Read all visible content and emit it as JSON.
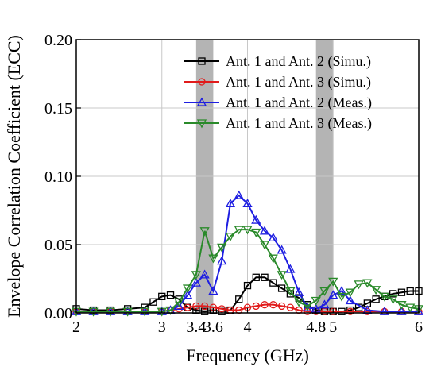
{
  "chart_data": {
    "type": "line",
    "xlabel": "Frequency (GHz)",
    "ylabel": "Envelope Correlation Coefficient (ECC)",
    "xlim": [
      2,
      6
    ],
    "ylim": [
      0,
      0.2
    ],
    "grid": true,
    "legend_position": "top-right",
    "x_ticks": [
      2,
      3,
      3.4,
      3.6,
      4,
      4.8,
      5,
      6
    ],
    "x_tick_labels": [
      "2",
      "3",
      "3.4",
      "3.6",
      "4",
      "4.8",
      "5",
      "6"
    ],
    "y_ticks": [
      0,
      0.05,
      0.1,
      0.15,
      0.2
    ],
    "y_tick_labels": [
      "0.00",
      "0.05",
      "0.10",
      "0.15",
      "0.20"
    ],
    "shaded_bands": [
      [
        3.4,
        3.6
      ],
      [
        4.8,
        5.0
      ]
    ],
    "band_color": "#b4b4b4",
    "series": [
      {
        "name": "Ant. 1 and Ant. 2 (Simu.)",
        "color": "#000000",
        "marker": "square",
        "x": [
          2.0,
          2.2,
          2.4,
          2.6,
          2.8,
          2.9,
          3.0,
          3.1,
          3.2,
          3.3,
          3.4,
          3.5,
          3.6,
          3.7,
          3.8,
          3.9,
          4.0,
          4.1,
          4.2,
          4.3,
          4.4,
          4.5,
          4.6,
          4.7,
          4.8,
          4.9,
          5.0,
          5.1,
          5.2,
          5.3,
          5.4,
          5.5,
          5.6,
          5.7,
          5.8,
          5.9,
          6.0
        ],
        "y": [
          0.003,
          0.002,
          0.002,
          0.003,
          0.004,
          0.008,
          0.012,
          0.013,
          0.01,
          0.004,
          0.002,
          0.001,
          0.002,
          0.001,
          0.002,
          0.01,
          0.02,
          0.026,
          0.026,
          0.022,
          0.018,
          0.014,
          0.011,
          0.006,
          0.002,
          0.001,
          0.001,
          0.001,
          0.002,
          0.004,
          0.007,
          0.01,
          0.012,
          0.014,
          0.015,
          0.016,
          0.016
        ]
      },
      {
        "name": "Ant. 1 and Ant. 3 (Simu.)",
        "color": "#e11b1b",
        "marker": "circle",
        "x": [
          2.0,
          2.2,
          2.4,
          2.6,
          2.8,
          3.0,
          3.1,
          3.2,
          3.3,
          3.4,
          3.5,
          3.6,
          3.7,
          3.8,
          3.9,
          4.0,
          4.1,
          4.2,
          4.3,
          4.4,
          4.5,
          4.6,
          4.7,
          4.8,
          4.9,
          5.0,
          5.2,
          5.4,
          5.6,
          5.8,
          6.0
        ],
        "y": [
          0.001,
          0.001,
          0.001,
          0.001,
          0.001,
          0.001,
          0.002,
          0.003,
          0.004,
          0.005,
          0.005,
          0.004,
          0.003,
          0.002,
          0.002,
          0.004,
          0.005,
          0.006,
          0.006,
          0.005,
          0.004,
          0.002,
          0.001,
          0.001,
          0.001,
          0.001,
          0.001,
          0.001,
          0.001,
          0.001,
          0.001
        ]
      },
      {
        "name": "Ant. 1 and Ant. 2 (Meas.)",
        "color": "#1e1ee1",
        "marker": "triangle-up",
        "x": [
          2.0,
          2.2,
          2.4,
          2.6,
          2.8,
          3.0,
          3.1,
          3.2,
          3.3,
          3.4,
          3.5,
          3.6,
          3.7,
          3.8,
          3.9,
          4.0,
          4.1,
          4.2,
          4.3,
          4.4,
          4.5,
          4.6,
          4.7,
          4.8,
          4.9,
          5.0,
          5.1,
          5.2,
          5.4,
          5.6,
          5.8,
          6.0
        ],
        "y": [
          0.001,
          0.001,
          0.001,
          0.001,
          0.001,
          0.001,
          0.002,
          0.005,
          0.013,
          0.022,
          0.028,
          0.016,
          0.038,
          0.08,
          0.086,
          0.08,
          0.068,
          0.06,
          0.055,
          0.046,
          0.032,
          0.015,
          0.004,
          0.003,
          0.006,
          0.013,
          0.016,
          0.009,
          0.002,
          0.001,
          0.001,
          0.001
        ]
      },
      {
        "name": "Ant. 1 and Ant. 3 (Meas.)",
        "color": "#2a8a2a",
        "marker": "triangle-down",
        "x": [
          2.0,
          2.2,
          2.4,
          2.6,
          2.8,
          3.0,
          3.1,
          3.2,
          3.3,
          3.4,
          3.5,
          3.6,
          3.7,
          3.8,
          3.9,
          4.0,
          4.1,
          4.2,
          4.3,
          4.4,
          4.5,
          4.6,
          4.7,
          4.8,
          4.9,
          5.0,
          5.1,
          5.2,
          5.3,
          5.4,
          5.5,
          5.6,
          5.7,
          5.8,
          5.9,
          6.0
        ],
        "y": [
          0.001,
          0.001,
          0.001,
          0.001,
          0.001,
          0.001,
          0.002,
          0.008,
          0.018,
          0.028,
          0.06,
          0.04,
          0.048,
          0.056,
          0.061,
          0.061,
          0.059,
          0.05,
          0.04,
          0.028,
          0.016,
          0.008,
          0.005,
          0.009,
          0.016,
          0.023,
          0.012,
          0.015,
          0.021,
          0.022,
          0.017,
          0.012,
          0.01,
          0.006,
          0.004,
          0.003
        ]
      }
    ]
  }
}
